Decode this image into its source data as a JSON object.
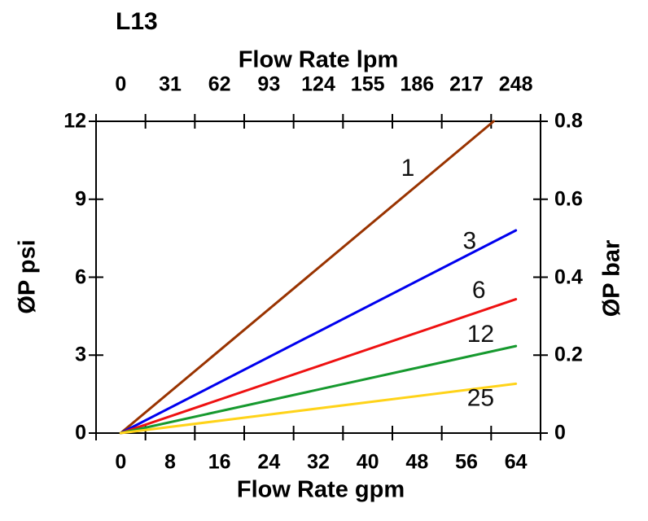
{
  "title": "L13",
  "chart_data": {
    "type": "line",
    "title": "L13",
    "grid": false,
    "legend_position": "inline-labels-on-lines",
    "axes": {
      "top": {
        "label": "Flow Rate lpm",
        "ticks": [
          "0",
          "31",
          "62",
          "93",
          "124",
          "155",
          "186",
          "217",
          "248"
        ]
      },
      "bottom": {
        "label": "Flow Rate gpm",
        "ticks": [
          "0",
          "8",
          "16",
          "24",
          "32",
          "40",
          "48",
          "56",
          "64"
        ],
        "range": [
          0,
          64
        ]
      },
      "left": {
        "label": "ØP psi",
        "ticks": [
          "0",
          "3",
          "6",
          "9",
          "12"
        ],
        "range": [
          0,
          12
        ]
      },
      "right": {
        "label": "ØP bar",
        "ticks": [
          "0",
          "0.2",
          "0.4",
          "0.6",
          "0.8"
        ],
        "range": [
          0,
          0.8
        ]
      }
    },
    "series": [
      {
        "name": "1",
        "color": "#993300",
        "points_gpm_psi": [
          [
            0,
            0
          ],
          [
            60.4,
            12
          ]
        ],
        "label_pos": [
          46.5,
          10.2
        ]
      },
      {
        "name": "3",
        "color": "#0000EE",
        "points_gpm_psi": [
          [
            0,
            0
          ],
          [
            64,
            7.8
          ]
        ],
        "label_pos": [
          56.5,
          7.4
        ]
      },
      {
        "name": "6",
        "color": "#EE1111",
        "points_gpm_psi": [
          [
            0,
            0
          ],
          [
            64,
            5.15
          ]
        ],
        "label_pos": [
          58.0,
          5.5
        ]
      },
      {
        "name": "12",
        "color": "#16992E",
        "points_gpm_psi": [
          [
            0,
            0
          ],
          [
            64,
            3.35
          ]
        ],
        "label_pos": [
          58.3,
          3.8
        ]
      },
      {
        "name": "25",
        "color": "#FFD319",
        "points_gpm_psi": [
          [
            0,
            0
          ],
          [
            64,
            1.9
          ]
        ],
        "label_pos": [
          58.3,
          1.35
        ]
      }
    ],
    "style": {
      "axis_color": "#000000",
      "frame_stroke": 2,
      "series_stroke": 3
    }
  },
  "layout_note": ""
}
